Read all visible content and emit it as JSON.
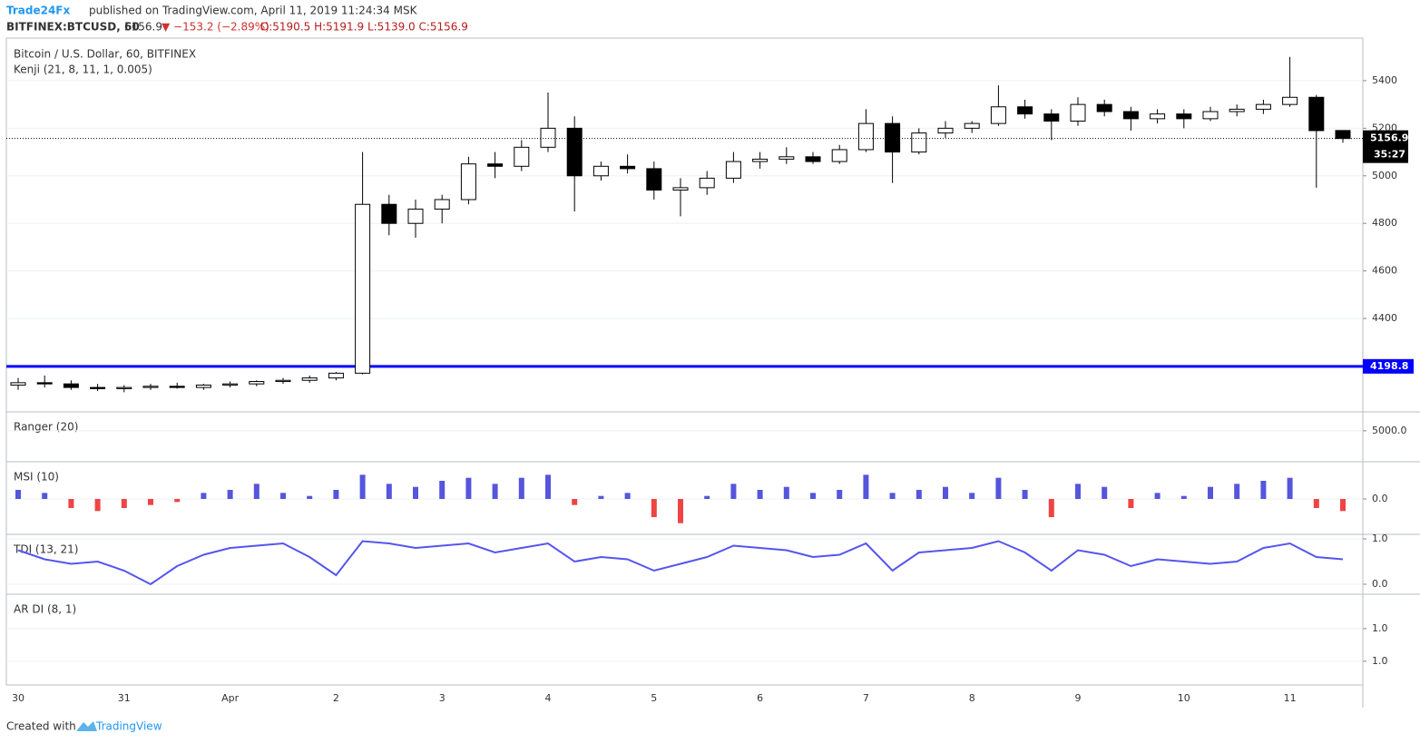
{
  "header": {
    "publisher": "Trade24Fx",
    "published": "published on TradingView.com, April 11, 2019 11:24:34 MSK",
    "symbol": "BITFINEX:BTCUSD, 60",
    "last": "5156.9",
    "change": "▼ −153.2 (−2.89%)",
    "ohlc": "O:5190.5 H:5191.9 L:5139.0 C:5156.9"
  },
  "footer": {
    "created": "Created with",
    "brand": "TradingView"
  },
  "chart_data": [
    {
      "type": "candlestick",
      "title": "Bitcoin / U.S. Dollar, 60, BITFINEX",
      "subtitle": "Kenji (21, 8, 11, 1, 0.005)",
      "categories": [
        "30",
        null,
        null,
        null,
        "31",
        null,
        null,
        null,
        "Apr",
        null,
        null,
        null,
        "2",
        null,
        null,
        null,
        "3",
        null,
        null,
        null,
        "4",
        null,
        null,
        null,
        "5",
        null,
        null,
        null,
        "6",
        null,
        null,
        null,
        "7",
        null,
        null,
        null,
        "8",
        null,
        null,
        null,
        "9",
        null,
        null,
        null,
        "10",
        null,
        null,
        null,
        "11",
        null,
        null
      ],
      "open": [
        4120,
        4130,
        4125,
        4110,
        4105,
        4110,
        4115,
        4110,
        4120,
        4125,
        4135,
        4140,
        4150,
        4170,
        4880,
        4800,
        4860,
        4900,
        5050,
        5040,
        5120,
        5200,
        5000,
        5040,
        5030,
        4940,
        4950,
        4990,
        5060,
        5070,
        5080,
        5060,
        5110,
        5220,
        5100,
        5180,
        5200,
        5220,
        5290,
        5260,
        5230,
        5300,
        5270,
        5240,
        5260,
        5240,
        5270,
        5280,
        5300,
        5330,
        5190.5
      ],
      "high": [
        4150,
        4160,
        4140,
        4125,
        4120,
        4125,
        4130,
        4125,
        4135,
        4140,
        4150,
        4160,
        4175,
        5100,
        4920,
        4900,
        4920,
        5080,
        5100,
        5150,
        5350,
        5250,
        5060,
        5090,
        5060,
        4990,
        5020,
        5100,
        5100,
        5120,
        5100,
        5130,
        5280,
        5250,
        5200,
        5230,
        5230,
        5380,
        5320,
        5280,
        5330,
        5320,
        5290,
        5280,
        5280,
        5290,
        5300,
        5320,
        5500,
        5340,
        5191.9
      ],
      "low": [
        4100,
        4110,
        4100,
        4095,
        4090,
        4100,
        4105,
        4100,
        4110,
        4115,
        4125,
        4130,
        4140,
        4165,
        4750,
        4740,
        4800,
        4880,
        4990,
        5020,
        5100,
        4850,
        4980,
        5010,
        4900,
        4830,
        4920,
        4970,
        5030,
        5050,
        5050,
        5050,
        5100,
        4970,
        5090,
        5160,
        5180,
        5210,
        5240,
        5150,
        5210,
        5250,
        5190,
        5220,
        5200,
        5230,
        5250,
        5260,
        5290,
        4950,
        5139
      ],
      "close": [
        4130,
        4125,
        4110,
        4105,
        4110,
        4115,
        4110,
        4120,
        4125,
        4135,
        4140,
        4150,
        4170,
        4880,
        4800,
        4860,
        4900,
        5050,
        5040,
        5120,
        5200,
        5000,
        5040,
        5030,
        4940,
        4950,
        4990,
        5060,
        5070,
        5080,
        5060,
        5110,
        5220,
        5100,
        5180,
        5200,
        5220,
        5290,
        5260,
        5230,
        5300,
        5270,
        5240,
        5260,
        5240,
        5270,
        5280,
        5300,
        5330,
        5190,
        5156.9
      ],
      "up_color": "#ffffff",
      "down_color": "#000000",
      "levels": [
        {
          "value": 4198.8,
          "color": "#0000ff"
        }
      ],
      "countdown": "35:27",
      "ylim": [
        4015,
        5579
      ],
      "yticks": [
        4400,
        4600,
        4800,
        5000,
        5200,
        5400
      ],
      "grid": true
    },
    {
      "type": "line",
      "title": "Ranger (20)",
      "ylim": [
        4000,
        5600
      ],
      "yticks": [
        {
          "value": 5000,
          "label": "5000.0"
        }
      ]
    },
    {
      "type": "histogram",
      "title": "MSI (10)",
      "ylim": [
        -1.2,
        1.2
      ],
      "yticks": [
        {
          "value": 0,
          "label": "0.0"
        }
      ],
      "pos_color": "#5555dd",
      "neg_color": "#ee4444",
      "values": [
        0.3,
        0.2,
        -0.3,
        -0.4,
        -0.3,
        -0.2,
        -0.1,
        0.2,
        0.3,
        0.5,
        0.2,
        0.1,
        0.3,
        0.8,
        0.5,
        0.4,
        0.6,
        0.7,
        0.5,
        0.7,
        0.8,
        -0.2,
        0.1,
        0.2,
        -0.6,
        -0.8,
        0.1,
        0.5,
        0.3,
        0.4,
        0.2,
        0.3,
        0.8,
        0.2,
        0.3,
        0.4,
        0.2,
        0.7,
        0.3,
        -0.6,
        0.5,
        0.4,
        -0.3,
        0.2,
        0.1,
        0.4,
        0.5,
        0.6,
        0.7,
        -0.3,
        -0.4
      ]
    },
    {
      "type": "line",
      "title": "TDI (13, 21)",
      "ylim": [
        -0.22,
        1.08
      ],
      "yticks": [
        {
          "value": 1,
          "label": "1.0"
        },
        {
          "value": 0,
          "label": "0.0"
        }
      ],
      "color": "#5555ee",
      "values": [
        0.75,
        0.55,
        0.45,
        0.5,
        0.3,
        0.0,
        0.4,
        0.65,
        0.8,
        0.85,
        0.9,
        0.6,
        0.2,
        0.95,
        0.9,
        0.8,
        0.85,
        0.9,
        0.7,
        0.8,
        0.9,
        0.5,
        0.6,
        0.55,
        0.3,
        0.45,
        0.6,
        0.85,
        0.8,
        0.75,
        0.6,
        0.65,
        0.9,
        0.3,
        0.7,
        0.75,
        0.8,
        0.95,
        0.7,
        0.3,
        0.75,
        0.65,
        0.4,
        0.55,
        0.5,
        0.45,
        0.5,
        0.8,
        0.9,
        0.6,
        0.55
      ]
    },
    {
      "type": "line",
      "title": "AR DI (8, 1)",
      "ylim": [
        0.951,
        1.061
      ],
      "yticks": [
        {
          "value": 1.02,
          "label": "1.0"
        },
        {
          "value": 0.98,
          "label": "1.0"
        }
      ]
    }
  ]
}
